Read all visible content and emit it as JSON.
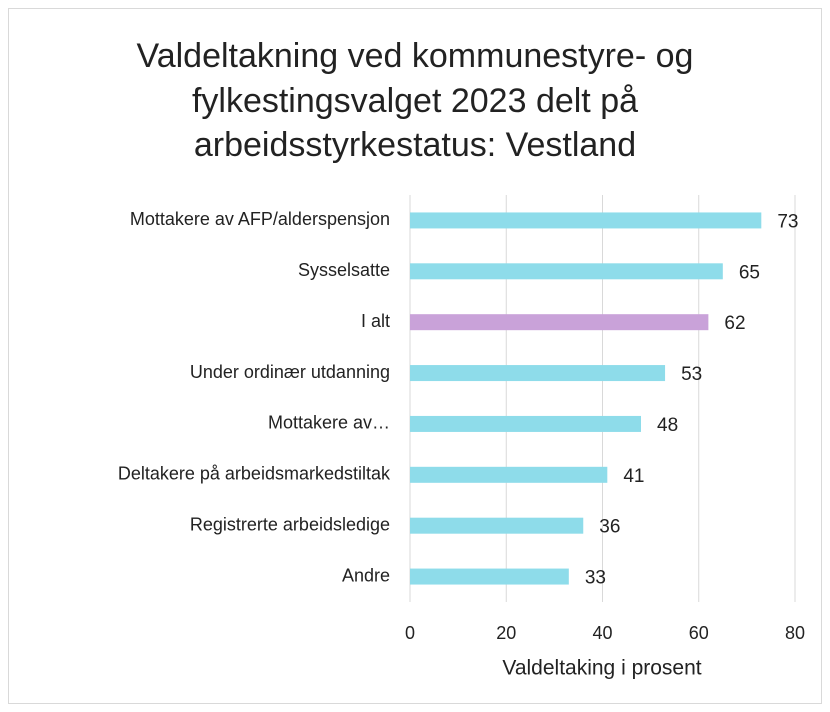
{
  "chart_data": {
    "type": "barh",
    "title": [
      "Valdeltakning ved kommunestyre- og",
      "fylkestingsvalget 2023 delt på",
      "arbeidsstyrkestatus: Vestland"
    ],
    "x_label": "Valdeltaking i prosent",
    "categories": [
      "Mottakere av AFP/alderspensjon",
      "Sysselsatte",
      "I alt",
      "Under ordinær utdanning",
      "Mottakere av…",
      "Deltakere på arbeidsmarkedstiltak",
      "Registrerte arbeidsledige",
      "Andre"
    ],
    "values": [
      73,
      65,
      62,
      53,
      48,
      41,
      36,
      33
    ],
    "colors": [
      "#8edcea",
      "#8edcea",
      "#c9a2d9",
      "#8edcea",
      "#8edcea",
      "#8edcea",
      "#8edcea",
      "#8edcea"
    ],
    "xlim": [
      0,
      80
    ],
    "xticks": [
      0,
      20,
      40,
      60,
      80
    ],
    "grid": true
  }
}
